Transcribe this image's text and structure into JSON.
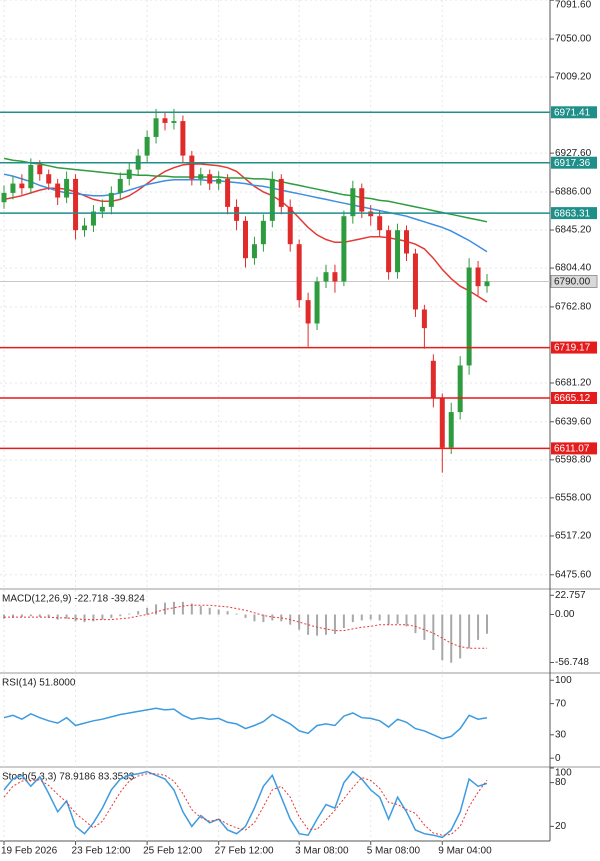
{
  "chart_data": [
    {
      "type": "candlestick",
      "categories": [
        "19 Feb 2026",
        null,
        null,
        null,
        null,
        null,
        null,
        null,
        "23 Feb 12:00",
        null,
        null,
        null,
        null,
        null,
        null,
        null,
        "25 Feb 12:00",
        null,
        null,
        null,
        null,
        null,
        null,
        null,
        "27 Feb 12:00",
        null,
        null,
        null,
        null,
        null,
        null,
        null,
        null,
        "3 Mar 08:00",
        null,
        null,
        null,
        null,
        null,
        null,
        null,
        "5 Mar 08:00",
        null,
        null,
        null,
        null,
        null,
        null,
        null,
        "9 Mar 04:00",
        null,
        null,
        null,
        null,
        null
      ],
      "open": [
        6875,
        6885,
        6895,
        6890,
        6915,
        6905,
        6895,
        6880,
        6900,
        6845,
        6850,
        6865,
        6870,
        6885,
        6900,
        6910,
        6925,
        6945,
        6965,
        6960,
        6962,
        6925,
        6900,
        6905,
        6895,
        6900,
        6870,
        6855,
        6815,
        6830,
        6855,
        6900,
        6870,
        6830,
        6770,
        6745,
        6790,
        6800,
        6790,
        6860,
        6890,
        6865,
        6860,
        6845,
        6800,
        6845,
        6820,
        6760,
        6705,
        6665,
        6612,
        6650,
        6700,
        6805,
        6785
      ],
      "high": [
        6893,
        6903,
        6905,
        6922,
        6920,
        6910,
        6900,
        6908,
        6905,
        6858,
        6872,
        6878,
        6892,
        6907,
        6917,
        6932,
        6952,
        6975,
        6972,
        6975,
        6968,
        6930,
        6912,
        6910,
        6908,
        6905,
        6878,
        6860,
        6838,
        6862,
        6908,
        6905,
        6878,
        6835,
        6778,
        6795,
        6808,
        6808,
        6866,
        6898,
        6895,
        6872,
        6866,
        6850,
        6852,
        6850,
        6825,
        6765,
        6712,
        6670,
        6660,
        6710,
        6815,
        6812,
        6798
      ],
      "low": [
        6868,
        6878,
        6883,
        6884,
        6898,
        6888,
        6872,
        6874,
        6835,
        6838,
        6843,
        6858,
        6862,
        6878,
        6893,
        6903,
        6918,
        6938,
        6952,
        6953,
        6918,
        6893,
        6893,
        6888,
        6888,
        6862,
        6845,
        6805,
        6808,
        6822,
        6848,
        6862,
        6822,
        6762,
        6720,
        6738,
        6783,
        6778,
        6785,
        6852,
        6858,
        6850,
        6838,
        6792,
        6793,
        6812,
        6752,
        6718,
        6655,
        6585,
        6605,
        6642,
        6690,
        6775,
        6778
      ],
      "close": [
        6885,
        6895,
        6890,
        6915,
        6905,
        6895,
        6880,
        6900,
        6845,
        6850,
        6865,
        6870,
        6885,
        6900,
        6910,
        6925,
        6945,
        6965,
        6960,
        6962,
        6925,
        6900,
        6905,
        6895,
        6900,
        6870,
        6855,
        6815,
        6830,
        6855,
        6900,
        6870,
        6830,
        6770,
        6745,
        6790,
        6800,
        6790,
        6860,
        6890,
        6865,
        6860,
        6845,
        6800,
        6845,
        6820,
        6760,
        6740,
        6665,
        6612,
        6650,
        6700,
        6805,
        6785,
        6790
      ],
      "up_color": "#2e9b3e",
      "down_color": "#e02b2b",
      "series": [
        {
          "color": "#e53935",
          "values": [
            6878,
            6880,
            6882,
            6885,
            6888,
            6890,
            6890,
            6889,
            6886,
            6882,
            6878,
            6876,
            6876,
            6878,
            6882,
            6888,
            6895,
            6902,
            6908,
            6912,
            6915,
            6916,
            6916,
            6915,
            6914,
            6912,
            6908,
            6900,
            6892,
            6886,
            6882,
            6876,
            6868,
            6858,
            6848,
            6840,
            6835,
            6832,
            6832,
            6834,
            6836,
            6838,
            6838,
            6837,
            6835,
            6833,
            6830,
            6825,
            6815,
            6803,
            6793,
            6785,
            6780,
            6774,
            6768
          ]
        },
        {
          "color": "#3d8fe0",
          "values": [
            6905,
            6903,
            6900,
            6897,
            6893,
            6890,
            6887,
            6885,
            6884,
            6883,
            6882,
            6882,
            6883,
            6885,
            6888,
            6891,
            6894,
            6896,
            6898,
            6899,
            6899,
            6899,
            6899,
            6898,
            6898,
            6897,
            6896,
            6895,
            6893,
            6892,
            6890,
            6888,
            6886,
            6884,
            6882,
            6880,
            6878,
            6876,
            6874,
            6872,
            6870,
            6868,
            6866,
            6864,
            6862,
            6860,
            6857,
            6854,
            6851,
            6848,
            6844,
            6839,
            6834,
            6828,
            6822
          ]
        },
        {
          "color": "#2e9b3e",
          "values": [
            6922,
            6920,
            6919,
            6917,
            6916,
            6914,
            6912,
            6911,
            6910,
            6909,
            6908,
            6907,
            6906,
            6905,
            6905,
            6904,
            6904,
            6903,
            6903,
            6902,
            6902,
            6902,
            6902,
            6902,
            6902,
            6901,
            6901,
            6901,
            6900,
            6900,
            6899,
            6897,
            6895,
            6893,
            6891,
            6889,
            6887,
            6885,
            6883,
            6882,
            6880,
            6879,
            6877,
            6876,
            6874,
            6872,
            6870,
            6868,
            6866,
            6864,
            6862,
            6860,
            6858,
            6856,
            6854
          ]
        }
      ],
      "levels": [
        {
          "value": 6971.41,
          "color": "#1f8f8a"
        },
        {
          "value": 6917.36,
          "color": "#1f8f8a"
        },
        {
          "value": 6863.31,
          "color": "#1f8f8a"
        },
        {
          "value": 6719.17,
          "color": "#e51c1c"
        },
        {
          "value": 6665.12,
          "color": "#e51c1c"
        },
        {
          "value": 6611.07,
          "color": "#e51c1c"
        }
      ],
      "current_price": {
        "value": 6790,
        "label": "6790.00"
      },
      "ylim": [
        6461.4,
        7091.8
      ],
      "yticks": [
        {
          "value": 7091.6,
          "label": "7091.60"
        },
        {
          "value": 7050,
          "label": "7050.00"
        },
        {
          "value": 7009.2,
          "label": "7009.20"
        },
        {
          "value": 6927.6,
          "label": "6927.60"
        },
        {
          "value": 6886,
          "label": "6886.00"
        },
        {
          "value": 6845.2,
          "label": "6845.20"
        },
        {
          "value": 6804.4,
          "label": "6804.40"
        },
        {
          "value": 6762.8,
          "label": "6762.80"
        },
        {
          "value": 6681.2,
          "label": "6681.20"
        },
        {
          "value": 6639.6,
          "label": "6639.60"
        },
        {
          "value": 6598.8,
          "label": "6598.80"
        },
        {
          "value": 6558,
          "label": "6558.00"
        },
        {
          "value": 6517.2,
          "label": "6517.20"
        },
        {
          "value": 6475.6,
          "label": "6475.60"
        }
      ],
      "grid": true
    },
    {
      "type": "macd",
      "title": "MACD(12,26,9) -22.718 -39.824",
      "ylim": [
        -68,
        29
      ],
      "yticks": [
        22.757,
        {
          "value": 0,
          "label": "0.00"
        },
        -56.748
      ],
      "series": [
        {
          "style": "histogram",
          "color": "#a8a8a8",
          "values": [
            -5,
            -4,
            -3,
            -2,
            -3,
            -4,
            -6,
            -5,
            -8,
            -9,
            -8,
            -6,
            -4,
            -2,
            1,
            4,
            8,
            12,
            14,
            15,
            15,
            13,
            10,
            8,
            6,
            4,
            1,
            -4,
            -8,
            -9,
            -7,
            -8,
            -12,
            -18,
            -24,
            -25,
            -24,
            -23,
            -16,
            -9,
            -7,
            -6,
            -7,
            -12,
            -11,
            -14,
            -22,
            -30,
            -42,
            -54,
            -57,
            -52,
            -40,
            -30,
            -22.718
          ]
        },
        {
          "style": "dotted",
          "color": "#e53935",
          "values": [
            -3,
            -3,
            -3,
            -3,
            -3,
            -3,
            -4,
            -4,
            -5,
            -6,
            -6,
            -6,
            -6,
            -5,
            -4,
            -2,
            0,
            3,
            6,
            8,
            10,
            11,
            11,
            11,
            10,
            9,
            7,
            5,
            2,
            -1,
            -3,
            -4,
            -6,
            -9,
            -12,
            -15,
            -17,
            -19,
            -19,
            -17,
            -15,
            -14,
            -12,
            -12,
            -12,
            -12,
            -14,
            -18,
            -22,
            -28,
            -34,
            -38,
            -40,
            -40,
            -39.824
          ]
        }
      ]
    },
    {
      "type": "line",
      "title": "RSI(14) 51.8000",
      "ylim": [
        -10,
        108
      ],
      "yticks": [
        100,
        70,
        30,
        0
      ],
      "series": [
        {
          "style": "solid",
          "color": "#3d9be0",
          "values": [
            52,
            55,
            50,
            57,
            52,
            48,
            45,
            52,
            42,
            45,
            48,
            50,
            53,
            56,
            58,
            60,
            62,
            64,
            62,
            63,
            55,
            50,
            52,
            50,
            51,
            46,
            44,
            38,
            42,
            47,
            56,
            50,
            44,
            35,
            32,
            42,
            44,
            42,
            54,
            58,
            52,
            51,
            48,
            40,
            50,
            46,
            38,
            35,
            30,
            25,
            28,
            38,
            55,
            50,
            51.8
          ]
        }
      ]
    },
    {
      "type": "line",
      "title": "Stoch(5,3,3) 78.9186 83.3533",
      "ylim": [
        0,
        100
      ],
      "yticks": [
        100,
        80,
        20
      ],
      "series": [
        {
          "style": "solid",
          "color": "#3d9be0",
          "values": [
            70,
            85,
            90,
            75,
            88,
            65,
            40,
            55,
            20,
            10,
            25,
            45,
            70,
            85,
            90,
            92,
            95,
            90,
            85,
            70,
            40,
            20,
            35,
            25,
            30,
            15,
            10,
            20,
            45,
            75,
            90,
            60,
            30,
            10,
            8,
            30,
            50,
            45,
            80,
            95,
            85,
            70,
            60,
            30,
            60,
            40,
            15,
            10,
            8,
            5,
            15,
            40,
            85,
            75,
            78.9186
          ]
        },
        {
          "style": "dotted",
          "color": "#e53935",
          "values": [
            60,
            75,
            82,
            83,
            84,
            76,
            64,
            53,
            38,
            28,
            18,
            27,
            47,
            67,
            82,
            89,
            92,
            92,
            90,
            82,
            65,
            43,
            32,
            27,
            30,
            23,
            18,
            15,
            25,
            47,
            70,
            75,
            60,
            33,
            16,
            16,
            29,
            42,
            58,
            73,
            87,
            83,
            72,
            53,
            50,
            43,
            38,
            22,
            11,
            8,
            9,
            20,
            47,
            67,
            83.3533
          ]
        }
      ]
    }
  ]
}
